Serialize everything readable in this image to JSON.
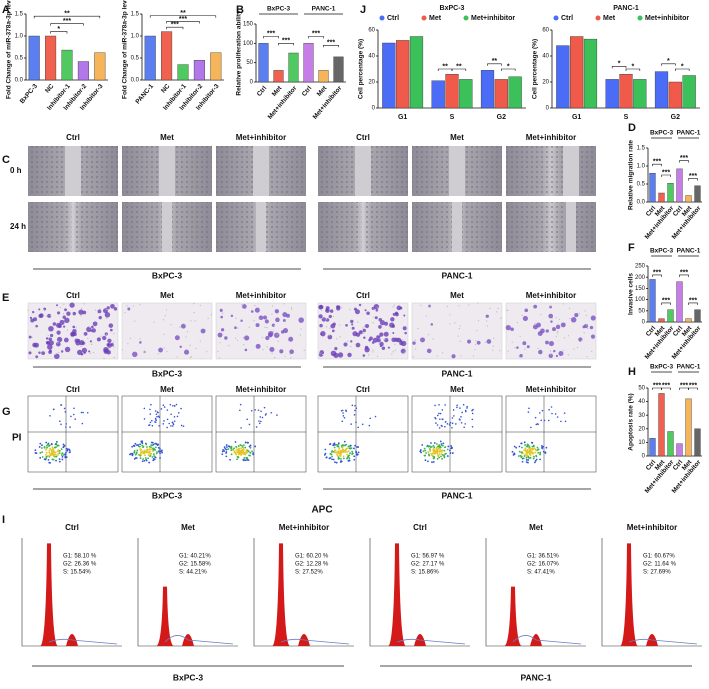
{
  "panel_labels": [
    "A",
    "B",
    "C",
    "D",
    "E",
    "F",
    "G",
    "H",
    "I",
    "J"
  ],
  "chart_data": [
    {
      "type": "bar",
      "ylabel": "Fold Change of miR-378a-3p level",
      "categories": [
        "BxPC-3",
        "NC",
        "Inhibitor-1",
        "Inhibitor-2",
        "Inhibitor-3"
      ],
      "values": [
        1.0,
        1.0,
        0.68,
        0.42,
        0.62
      ],
      "colors": [
        "#5b7ff0",
        "#f0624f",
        "#4fc960",
        "#b277e8",
        "#f7b55a"
      ],
      "ylim": [
        0,
        1.5
      ],
      "yticks": [
        {
          "value": 0,
          "label": "0.0"
        },
        0.5,
        {
          "value": 1,
          "label": "1.0"
        },
        1.5
      ],
      "annotations": [
        "*",
        "***",
        "**"
      ]
    },
    {
      "type": "bar",
      "ylabel": "Fold Change of miR-378a-3p level",
      "categories": [
        "PANC-1",
        "NC",
        "Inhibitor-1",
        "Inhibitor-2",
        "Inhibitor-3"
      ],
      "values": [
        1.0,
        1.1,
        0.35,
        0.45,
        0.62
      ],
      "colors": [
        "#5b7ff0",
        "#f0624f",
        "#4fc960",
        "#b277e8",
        "#f7b55a"
      ],
      "ylim": [
        0,
        1.5
      ],
      "yticks": [
        {
          "value": 0,
          "label": "0.0"
        },
        0.5,
        {
          "value": 1,
          "label": "1.0"
        },
        1.5
      ],
      "annotations": [
        "***",
        "***",
        "**"
      ]
    },
    {
      "type": "bar",
      "ylabel": "Relative proliferation ability",
      "groups": [
        "BxPC-3",
        "PANC-1"
      ],
      "categories": [
        "Ctrl",
        "Met",
        "Met+inhibitor",
        "Ctrl",
        "Met",
        "Met+inhibitor"
      ],
      "values": [
        100,
        30,
        75,
        100,
        30,
        65
      ],
      "colors": [
        "#5b7ff0",
        "#f0624f",
        "#4fc960",
        "#c77de8",
        "#f7b55a",
        "#666666"
      ],
      "ylim": [
        0,
        150
      ],
      "yticks": [
        0,
        50,
        100,
        150
      ],
      "annotations": [
        "***",
        "***",
        "***",
        "***"
      ]
    },
    {
      "type": "grouped-bar",
      "title": "BxPC-3",
      "ylabel": "Cell percentage (%)",
      "categories": [
        "G1",
        "S",
        "G2"
      ],
      "series": [
        {
          "name": "Ctrl",
          "color": "#4a6cf7",
          "values": [
            50,
            21,
            29
          ]
        },
        {
          "name": "Met",
          "color": "#f05a4a",
          "values": [
            52,
            26,
            22
          ]
        },
        {
          "name": "Met+inhibitor",
          "color": "#3cc05a",
          "values": [
            55,
            22,
            24
          ]
        }
      ],
      "ylim": [
        0,
        60
      ],
      "yticks": [
        0,
        20,
        40,
        60
      ],
      "annotations": [
        "**",
        "**",
        "**",
        "*"
      ]
    },
    {
      "type": "grouped-bar",
      "title": "PANC-1",
      "ylabel": "Cell percentage (%)",
      "categories": [
        "G1",
        "S",
        "G2"
      ],
      "series": [
        {
          "name": "Ctrl",
          "color": "#4a6cf7",
          "values": [
            48,
            22,
            28
          ]
        },
        {
          "name": "Met",
          "color": "#f05a4a",
          "values": [
            55,
            26,
            20
          ]
        },
        {
          "name": "Met+inhibitor",
          "color": "#3cc05a",
          "values": [
            53,
            22,
            25
          ]
        }
      ],
      "ylim": [
        0,
        60
      ],
      "yticks": [
        0,
        20,
        40,
        60
      ],
      "annotations": [
        "*",
        "*",
        "*",
        "*"
      ]
    },
    {
      "type": "bar",
      "ylabel": "Relative migration rate",
      "groups": [
        "BxPC-3",
        "PANC-1"
      ],
      "categories": [
        "Ctrl",
        "Met",
        "Met+inhibitor",
        "Ctrl",
        "Met",
        "Met+inhibitor"
      ],
      "values": [
        0.8,
        0.25,
        0.52,
        0.92,
        0.18,
        0.45
      ],
      "colors": [
        "#5b7ff0",
        "#f0624f",
        "#4fc960",
        "#c77de8",
        "#f7b55a",
        "#666666"
      ],
      "ylim": [
        0,
        1.5
      ],
      "yticks": [
        {
          "value": 0,
          "label": "0.0"
        },
        0.5,
        {
          "value": 1,
          "label": "1.0"
        },
        1.5
      ],
      "annotations": [
        "***",
        "***",
        "***",
        "***"
      ]
    },
    {
      "type": "bar",
      "ylabel": "Invasive cells",
      "groups": [
        "BxPC-3",
        "PANC-1"
      ],
      "categories": [
        "Ctrl",
        "Met",
        "Met+inhibitor",
        "Ctrl",
        "Met",
        "Met+inhibitor"
      ],
      "values": [
        190,
        15,
        55,
        180,
        15,
        55
      ],
      "colors": [
        "#5b7ff0",
        "#f0624f",
        "#4fc960",
        "#c77de8",
        "#f7b55a",
        "#666666"
      ],
      "ylim": [
        0,
        250
      ],
      "yticks": [
        0,
        50,
        100,
        150,
        200,
        250
      ],
      "annotations": [
        "***",
        "***",
        "***",
        "***"
      ]
    },
    {
      "type": "bar",
      "ylabel": "Apoptosis rate (%)",
      "groups": [
        "BxPC-3",
        "PANC-1"
      ],
      "categories": [
        "Ctrl",
        "Met",
        "Met+inhibitor",
        "Ctrl",
        "Met",
        "Met+inhibitor"
      ],
      "values": [
        13,
        46,
        18,
        9,
        42,
        20
      ],
      "colors": [
        "#5b7ff0",
        "#f0624f",
        "#4fc960",
        "#c77de8",
        "#f7b55a",
        "#666666"
      ],
      "ylim": [
        0,
        50
      ],
      "yticks": [
        0,
        10,
        20,
        30,
        40,
        50
      ],
      "annotations": [
        "***",
        "***",
        "***",
        "***"
      ]
    }
  ],
  "images": {
    "C": {
      "columns": [
        "Ctrl",
        "Met",
        "Met+inhibitor",
        "Ctrl",
        "Met",
        "Met+inhibitor"
      ],
      "rows": [
        "0 h",
        "24 h"
      ],
      "groups": [
        "BxPC-3",
        "PANC-1"
      ]
    },
    "E": {
      "columns": [
        "Ctrl",
        "Met",
        "Met+inhibitor",
        "Ctrl",
        "Met",
        "Met+inhibitor"
      ],
      "groups": [
        "BxPC-3",
        "PANC-1"
      ]
    },
    "G": {
      "columns": [
        "Ctrl",
        "Met",
        "Met+inhibitor",
        "Ctrl",
        "Met",
        "Met+inhibitor"
      ],
      "groups": [
        "BxPC-3",
        "PANC-1"
      ],
      "y_label": "PI",
      "x_label": "APC"
    },
    "I": {
      "columns": [
        "Ctrl",
        "Met",
        "Met+inhibitor",
        "Ctrl",
        "Met",
        "Met+inhibitor"
      ],
      "groups": [
        "BxPC-3",
        "PANC-1"
      ],
      "stats": [
        [
          "G1: 58.10 %",
          "G2: 26.36 %",
          "S: 15.54%"
        ],
        [
          "G1: 40.21%",
          "G2: 15.58%",
          "S: 44.21%"
        ],
        [
          "G1: 60.20 %",
          "G2: 12.28 %",
          "S: 27.52%"
        ],
        [
          "G1: 56.97 %",
          "G2: 27.17 %",
          "S: 15.86%"
        ],
        [
          "G1: 36.51%",
          "G2: 16.07%",
          "S: 47.41%"
        ],
        [
          "G1: 60.67%",
          "G2: 11.64 %",
          "S: 27.69%"
        ]
      ]
    }
  }
}
